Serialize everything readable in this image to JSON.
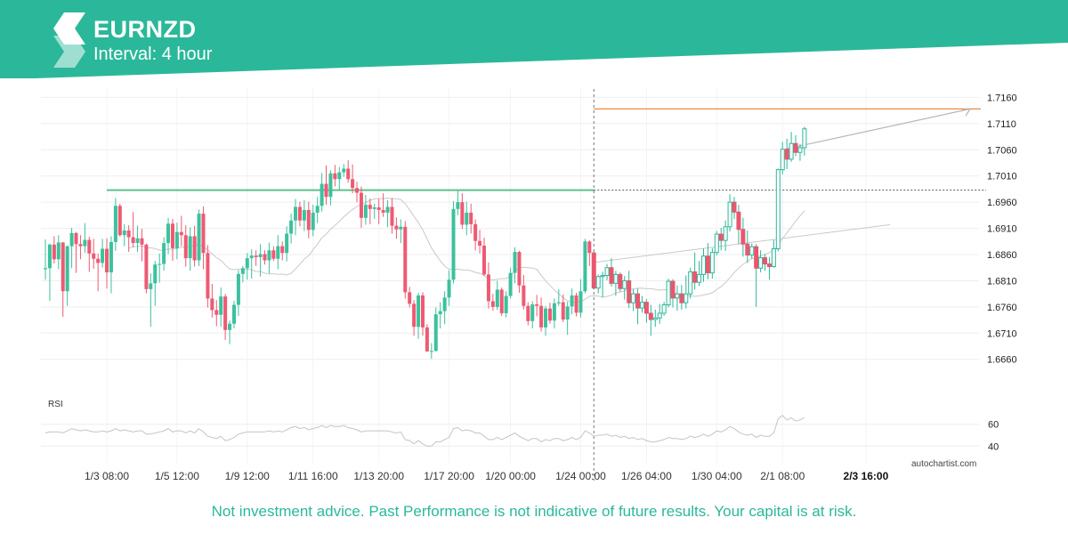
{
  "header": {
    "symbol": "EURNZD",
    "interval_label": "Interval: 4 hour",
    "logo_icon": "autochartist-logo-icon",
    "brand_color": "#2bb89a"
  },
  "footer": {
    "disclaimer": "Not investment advice. Past Performance is not indicative of future results. Your capital is at risk."
  },
  "watermark": "autochartist.com",
  "chart_data": {
    "type": "candlestick",
    "instrument": "EURNZD",
    "interval": "4 hour",
    "y_ticks": [
      "1.7160",
      "1.7110",
      "1.7060",
      "1.7010",
      "1.6960",
      "1.6910",
      "1.6860",
      "1.6810",
      "1.6760",
      "1.6710",
      "1.6660"
    ],
    "ylim": [
      1.6612,
      1.7176
    ],
    "x_ticks": [
      "1/3 08:00",
      "1/5 12:00",
      "1/9 12:00",
      "1/11 16:00",
      "1/13 20:00",
      "1/17 20:00",
      "1/20 00:00",
      "1/24 00:00",
      "1/26 04:00",
      "1/30 04:00",
      "2/1 08:00",
      "2/3 16:00"
    ],
    "highlighted_x_tick": "2/3 16:00",
    "resistance_level": 1.6983,
    "target_level": 1.7138,
    "breakout_candle_index": 125,
    "ma_closes_length": 20,
    "candles": [
      [
        1.6832,
        1.6889,
        1.6812,
        1.6834
      ],
      [
        1.6834,
        1.6881,
        1.6772,
        1.6879
      ],
      [
        1.6879,
        1.6895,
        1.6843,
        1.6851
      ],
      [
        1.6851,
        1.6897,
        1.6832,
        1.6883
      ],
      [
        1.6883,
        1.6884,
        1.6741,
        1.679
      ],
      [
        1.679,
        1.6877,
        1.6762,
        1.6876
      ],
      [
        1.6876,
        1.6911,
        1.6834,
        1.6901
      ],
      [
        1.6901,
        1.6903,
        1.6825,
        1.688
      ],
      [
        1.688,
        1.6897,
        1.6851,
        1.6876
      ],
      [
        1.6876,
        1.692,
        1.6863,
        1.6888
      ],
      [
        1.6888,
        1.6894,
        1.6827,
        1.6862
      ],
      [
        1.6862,
        1.689,
        1.6833,
        1.6852
      ],
      [
        1.6852,
        1.6862,
        1.679,
        1.6844
      ],
      [
        1.6844,
        1.689,
        1.6835,
        1.6871
      ],
      [
        1.6871,
        1.6891,
        1.6795,
        1.6826
      ],
      [
        1.6826,
        1.6895,
        1.6786,
        1.6884
      ],
      [
        1.6884,
        1.6968,
        1.6867,
        1.6953
      ],
      [
        1.6953,
        1.6957,
        1.6894,
        1.6897
      ],
      [
        1.6897,
        1.6918,
        1.6876,
        1.6906
      ],
      [
        1.6906,
        1.6916,
        1.6865,
        1.6893
      ],
      [
        1.6893,
        1.6941,
        1.6874,
        1.6882
      ],
      [
        1.6882,
        1.6915,
        1.6865,
        1.6891
      ],
      [
        1.6891,
        1.6909,
        1.6847,
        1.6879
      ],
      [
        1.6879,
        1.6881,
        1.6786,
        1.6794
      ],
      [
        1.6794,
        1.6824,
        1.6722,
        1.6805
      ],
      [
        1.6805,
        1.6848,
        1.6762,
        1.6841
      ],
      [
        1.6841,
        1.6862,
        1.6806,
        1.6842
      ],
      [
        1.6842,
        1.6893,
        1.6829,
        1.6882
      ],
      [
        1.6882,
        1.693,
        1.6861,
        1.6919
      ],
      [
        1.6919,
        1.6928,
        1.6848,
        1.6872
      ],
      [
        1.6872,
        1.6921,
        1.6851,
        1.6903
      ],
      [
        1.6903,
        1.6934,
        1.6876,
        1.6897
      ],
      [
        1.6897,
        1.6916,
        1.6837,
        1.6853
      ],
      [
        1.6853,
        1.6912,
        1.6829,
        1.6895
      ],
      [
        1.6895,
        1.6915,
        1.6837,
        1.6849
      ],
      [
        1.6849,
        1.6946,
        1.6838,
        1.6938
      ],
      [
        1.6938,
        1.6952,
        1.6832,
        1.6863
      ],
      [
        1.6863,
        1.6878,
        1.6759,
        1.6776
      ],
      [
        1.6776,
        1.6804,
        1.674,
        1.6754
      ],
      [
        1.6754,
        1.6773,
        1.6723,
        1.6745
      ],
      [
        1.6745,
        1.6797,
        1.6722,
        1.678
      ],
      [
        1.678,
        1.6785,
        1.6697,
        1.6716
      ],
      [
        1.6716,
        1.6734,
        1.6689,
        1.6728
      ],
      [
        1.6728,
        1.6772,
        1.6719,
        1.6764
      ],
      [
        1.6764,
        1.683,
        1.6743,
        1.6823
      ],
      [
        1.6823,
        1.6838,
        1.6807,
        1.6834
      ],
      [
        1.6834,
        1.6863,
        1.6812,
        1.6853
      ],
      [
        1.6853,
        1.687,
        1.6814,
        1.6858
      ],
      [
        1.6858,
        1.6868,
        1.6838,
        1.6855
      ],
      [
        1.6855,
        1.688,
        1.6818,
        1.6861
      ],
      [
        1.6861,
        1.6868,
        1.6841,
        1.6849
      ],
      [
        1.6849,
        1.6883,
        1.6824,
        1.6868
      ],
      [
        1.6868,
        1.6876,
        1.6848,
        1.6852
      ],
      [
        1.6852,
        1.6897,
        1.6832,
        1.6876
      ],
      [
        1.6876,
        1.6885,
        1.6849,
        1.6863
      ],
      [
        1.6863,
        1.6914,
        1.6847,
        1.69
      ],
      [
        1.69,
        1.6938,
        1.6881,
        1.6925
      ],
      [
        1.6925,
        1.6966,
        1.6897,
        1.6951
      ],
      [
        1.6951,
        1.6961,
        1.6914,
        1.6925
      ],
      [
        1.6925,
        1.6964,
        1.6905,
        1.6945
      ],
      [
        1.6945,
        1.6961,
        1.6891,
        1.6907
      ],
      [
        1.6907,
        1.6955,
        1.6895,
        1.694
      ],
      [
        1.694,
        1.697,
        1.692,
        1.6953
      ],
      [
        1.6953,
        1.7016,
        1.6942,
        1.6995
      ],
      [
        1.6995,
        1.703,
        1.6955,
        1.697
      ],
      [
        1.697,
        1.7021,
        1.6954,
        1.7015
      ],
      [
        1.7015,
        1.7031,
        1.699,
        1.7004
      ],
      [
        1.7004,
        1.7027,
        1.6983,
        1.7017
      ],
      [
        1.7017,
        1.7033,
        1.7008,
        1.7024
      ],
      [
        1.7024,
        1.704,
        1.6997,
        1.7004
      ],
      [
        1.7004,
        1.7032,
        1.6977,
        1.6987
      ],
      [
        1.6987,
        1.6999,
        1.696,
        1.6978
      ],
      [
        1.6978,
        1.699,
        1.6911,
        1.693
      ],
      [
        1.693,
        1.6974,
        1.6917,
        1.6955
      ],
      [
        1.6955,
        1.6967,
        1.6918,
        1.6947
      ],
      [
        1.6947,
        1.6957,
        1.6928,
        1.695
      ],
      [
        1.695,
        1.6966,
        1.6918,
        1.6945
      ],
      [
        1.6945,
        1.6977,
        1.6932,
        1.694
      ],
      [
        1.694,
        1.6964,
        1.6912,
        1.6951
      ],
      [
        1.6951,
        1.6968,
        1.69,
        1.6915
      ],
      [
        1.6915,
        1.6931,
        1.689,
        1.6908
      ],
      [
        1.6908,
        1.6927,
        1.6882,
        1.6913
      ],
      [
        1.6913,
        1.6924,
        1.6776,
        1.6788
      ],
      [
        1.6788,
        1.6798,
        1.6759,
        1.6766
      ],
      [
        1.6766,
        1.6773,
        1.6705,
        1.6722
      ],
      [
        1.6722,
        1.6787,
        1.6699,
        1.6782
      ],
      [
        1.6782,
        1.6788,
        1.6705,
        1.6721
      ],
      [
        1.6721,
        1.6727,
        1.6675,
        1.6675
      ],
      [
        1.6675,
        1.6691,
        1.6661,
        1.6676
      ],
      [
        1.6676,
        1.6759,
        1.6675,
        1.6746
      ],
      [
        1.6746,
        1.6769,
        1.6719,
        1.6752
      ],
      [
        1.6752,
        1.679,
        1.6727,
        1.6778
      ],
      [
        1.6778,
        1.683,
        1.6762,
        1.6812
      ],
      [
        1.6812,
        1.6962,
        1.6805,
        1.6947
      ],
      [
        1.6947,
        1.6982,
        1.6935,
        1.696
      ],
      [
        1.696,
        1.6977,
        1.6909,
        1.6917
      ],
      [
        1.6917,
        1.6961,
        1.6897,
        1.694
      ],
      [
        1.694,
        1.6957,
        1.69,
        1.6918
      ],
      [
        1.6918,
        1.6927,
        1.6868,
        1.6886
      ],
      [
        1.6886,
        1.6907,
        1.6862,
        1.6877
      ],
      [
        1.6877,
        1.6892,
        1.6819,
        1.6822
      ],
      [
        1.6822,
        1.6845,
        1.6757,
        1.6771
      ],
      [
        1.6771,
        1.6785,
        1.6753,
        1.676
      ],
      [
        1.676,
        1.681,
        1.6754,
        1.6793
      ],
      [
        1.6793,
        1.6797,
        1.6743,
        1.6748
      ],
      [
        1.6748,
        1.679,
        1.674,
        1.6781
      ],
      [
        1.6781,
        1.6835,
        1.6776,
        1.6825
      ],
      [
        1.6825,
        1.6874,
        1.6805,
        1.6865
      ],
      [
        1.6865,
        1.6867,
        1.6787,
        1.6801
      ],
      [
        1.6801,
        1.6821,
        1.6755,
        1.6762
      ],
      [
        1.6762,
        1.6769,
        1.6725,
        1.6733
      ],
      [
        1.6733,
        1.6771,
        1.6719,
        1.6765
      ],
      [
        1.6765,
        1.6783,
        1.6742,
        1.6762
      ],
      [
        1.6762,
        1.6778,
        1.6713,
        1.6721
      ],
      [
        1.6721,
        1.6762,
        1.6705,
        1.6757
      ],
      [
        1.6757,
        1.6768,
        1.6728,
        1.6734
      ],
      [
        1.6734,
        1.6776,
        1.6719,
        1.6767
      ],
      [
        1.6767,
        1.6794,
        1.6762,
        1.6769
      ],
      [
        1.6769,
        1.6784,
        1.6731,
        1.6736
      ],
      [
        1.6736,
        1.677,
        1.6707,
        1.6761
      ],
      [
        1.6761,
        1.6795,
        1.6746,
        1.6782
      ],
      [
        1.6782,
        1.6787,
        1.6742,
        1.6749
      ],
      [
        1.6749,
        1.6813,
        1.674,
        1.679
      ],
      [
        1.679,
        1.689,
        1.6786,
        1.6885
      ],
      [
        1.6885,
        1.6887,
        1.6838,
        1.6863
      ],
      [
        1.6863,
        1.6867,
        1.6793,
        1.6796
      ],
      [
        1.6796,
        1.6822,
        1.6786,
        1.6818
      ],
      [
        1.6818,
        1.6827,
        1.6778,
        1.682
      ],
      [
        1.682,
        1.6842,
        1.6811,
        1.6835
      ],
      [
        1.6835,
        1.6853,
        1.6799,
        1.6805
      ],
      [
        1.6805,
        1.6829,
        1.6781,
        1.6822
      ],
      [
        1.6822,
        1.6826,
        1.6789,
        1.6795
      ],
      [
        1.6795,
        1.6819,
        1.6774,
        1.681
      ],
      [
        1.681,
        1.6829,
        1.6758,
        1.6768
      ],
      [
        1.6768,
        1.6794,
        1.6752,
        1.6785
      ],
      [
        1.6785,
        1.6795,
        1.6727,
        1.6758
      ],
      [
        1.6758,
        1.6781,
        1.6749,
        1.6769
      ],
      [
        1.6769,
        1.6775,
        1.673,
        1.6748
      ],
      [
        1.6748,
        1.6764,
        1.6705,
        1.6736
      ],
      [
        1.6736,
        1.6755,
        1.6722,
        1.6739
      ],
      [
        1.6739,
        1.6766,
        1.6728,
        1.6748
      ],
      [
        1.6748,
        1.677,
        1.6743,
        1.6764
      ],
      [
        1.6764,
        1.6814,
        1.6759,
        1.6809
      ],
      [
        1.6809,
        1.6813,
        1.6759,
        1.6777
      ],
      [
        1.6777,
        1.6801,
        1.6753,
        1.6785
      ],
      [
        1.6785,
        1.6802,
        1.6755,
        1.6768
      ],
      [
        1.6768,
        1.682,
        1.6757,
        1.6785
      ],
      [
        1.6785,
        1.6835,
        1.6776,
        1.6827
      ],
      [
        1.6827,
        1.6864,
        1.6793,
        1.6807
      ],
      [
        1.6807,
        1.6848,
        1.68,
        1.6822
      ],
      [
        1.6822,
        1.6872,
        1.6808,
        1.6857
      ],
      [
        1.6857,
        1.6882,
        1.6813,
        1.6825
      ],
      [
        1.6825,
        1.6872,
        1.6814,
        1.6864
      ],
      [
        1.6864,
        1.6905,
        1.6858,
        1.6899
      ],
      [
        1.6899,
        1.6911,
        1.6868,
        1.6887
      ],
      [
        1.6887,
        1.6925,
        1.6867,
        1.6913
      ],
      [
        1.6913,
        1.6975,
        1.6904,
        1.696
      ],
      [
        1.696,
        1.697,
        1.6928,
        1.6941
      ],
      [
        1.6941,
        1.6955,
        1.688,
        1.6908
      ],
      [
        1.6908,
        1.693,
        1.6856,
        1.688
      ],
      [
        1.688,
        1.6906,
        1.6844,
        1.6859
      ],
      [
        1.6859,
        1.6881,
        1.6852,
        1.6875
      ],
      [
        1.6875,
        1.688,
        1.676,
        1.6834
      ],
      [
        1.6834,
        1.6868,
        1.6826,
        1.6854
      ],
      [
        1.6854,
        1.6861,
        1.6829,
        1.6842
      ],
      [
        1.6842,
        1.6855,
        1.6812,
        1.6837
      ],
      [
        1.6837,
        1.6888,
        1.6835,
        1.6871
      ],
      [
        1.6871,
        1.7024,
        1.6866,
        1.7022
      ],
      [
        1.7022,
        1.7075,
        1.7013,
        1.7061
      ],
      [
        1.7061,
        1.7081,
        1.7023,
        1.7042
      ],
      [
        1.7042,
        1.7094,
        1.7037,
        1.7072
      ],
      [
        1.7072,
        1.7088,
        1.7048,
        1.7055
      ],
      [
        1.7055,
        1.7071,
        1.7039,
        1.7064
      ],
      [
        1.7064,
        1.7104,
        1.7049,
        1.71
      ]
    ],
    "rsi": {
      "label": "RSI",
      "y_ticks": [
        "60",
        "40"
      ],
      "ylim": [
        28,
        72
      ],
      "values": [
        52,
        53,
        53,
        53,
        52,
        54,
        56,
        55,
        54,
        55,
        54,
        53,
        53,
        54,
        53,
        54,
        56,
        54,
        55,
        54,
        53,
        54,
        54,
        51,
        51,
        52,
        53,
        54,
        56,
        53,
        54,
        54,
        52,
        54,
        52,
        56,
        53,
        49,
        48,
        47,
        49,
        45,
        46,
        48,
        51,
        52,
        53,
        53,
        53,
        53,
        53,
        54,
        53,
        54,
        53,
        55,
        57,
        58,
        56,
        57,
        55,
        56,
        57,
        59,
        57,
        59,
        58,
        58,
        59,
        57,
        56,
        55,
        53,
        54,
        54,
        54,
        54,
        54,
        54,
        53,
        52,
        53,
        46,
        45,
        42,
        45,
        42,
        40,
        40,
        44,
        44,
        46,
        48,
        56,
        57,
        54,
        55,
        54,
        52,
        52,
        49,
        46,
        46,
        48,
        46,
        48,
        50,
        52,
        49,
        47,
        45,
        47,
        47,
        44,
        46,
        45,
        47,
        47,
        45,
        46,
        48,
        46,
        48,
        54,
        52,
        49,
        50,
        50,
        51,
        49,
        50,
        48,
        49,
        47,
        48,
        46,
        47,
        45,
        44,
        44,
        45,
        46,
        48,
        47,
        47,
        46,
        47,
        49,
        48,
        49,
        51,
        49,
        51,
        54,
        53,
        55,
        58,
        56,
        53,
        51,
        50,
        51,
        48,
        50,
        49,
        49,
        52,
        65,
        68,
        64,
        66,
        63,
        64,
        66
      ]
    }
  }
}
